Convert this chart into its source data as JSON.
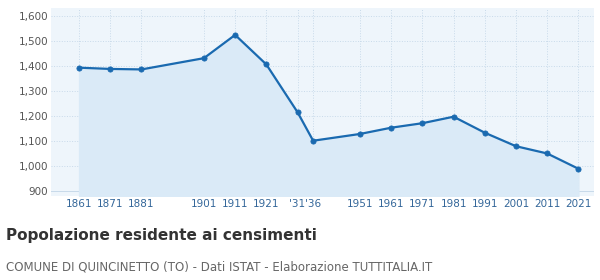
{
  "years": [
    1861,
    1871,
    1881,
    1901,
    1911,
    1921,
    1931,
    1936,
    1951,
    1961,
    1971,
    1981,
    1991,
    2001,
    2011,
    2021
  ],
  "population": [
    1393,
    1388,
    1386,
    1431,
    1524,
    1406,
    1215,
    1101,
    1128,
    1153,
    1171,
    1197,
    1133,
    1079,
    1050,
    989
  ],
  "ylim": [
    880,
    1630
  ],
  "yticks": [
    900,
    1000,
    1100,
    1200,
    1300,
    1400,
    1500,
    1600
  ],
  "ytick_labels": [
    "900",
    "1,000",
    "1,100",
    "1,200",
    "1,300",
    "1,400",
    "1,500",
    "1,600"
  ],
  "x_tick_pos": [
    1861,
    1871,
    1881,
    1901,
    1911,
    1921,
    1931,
    1936,
    1951,
    1961,
    1971,
    1981,
    1991,
    2001,
    2011,
    2021
  ],
  "x_tick_labels": [
    "1861",
    "1871",
    "1881",
    "1901",
    "1911",
    "1921",
    "'31",
    "'36",
    "1951",
    "1961",
    "1971",
    "1981",
    "1991",
    "2001",
    "2011",
    "2021"
  ],
  "xlim": [
    1852,
    2026
  ],
  "line_color": "#1a6ab0",
  "fill_color": "#daeaf7",
  "marker_color": "#1a6ab0",
  "bg_color": "#eef5fb",
  "grid_color": "#c8daea",
  "title": "Popolazione residente ai censimenti",
  "subtitle": "COMUNE DI QUINCINETTO (TO) - Dati ISTAT - Elaborazione TUTTITALIA.IT",
  "title_fontsize": 11,
  "subtitle_fontsize": 8.5
}
